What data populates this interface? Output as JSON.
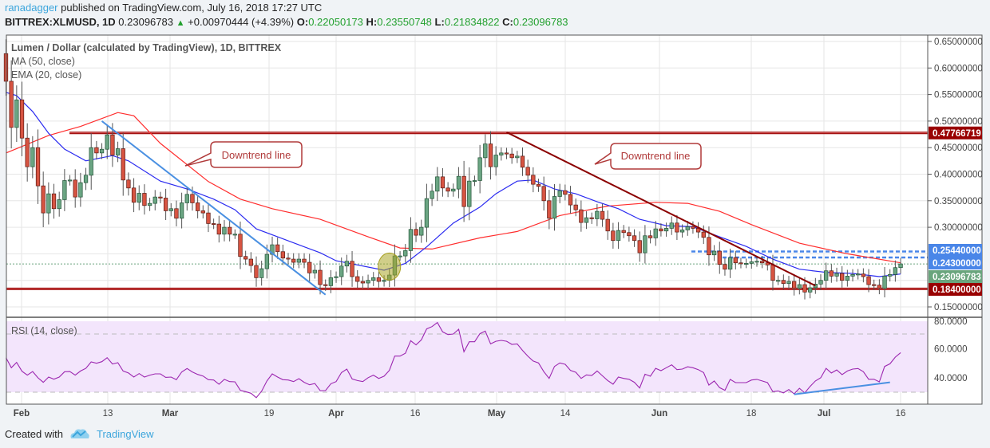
{
  "header": {
    "author": "ranadagger",
    "published_text": "published on TradingView.com, July 16, 2018 17:27 UTC",
    "symbol": "BITTREX:XLMUSD, 1D",
    "last": "0.23096783",
    "change": "+0.00970444 (+4.39%)",
    "o_label": "O:",
    "o": "0.22050173",
    "h_label": "H:",
    "h": "0.23550748",
    "l_label": "L:",
    "l": "0.21834822",
    "c_label": "C:",
    "c": "0.23096783",
    "up_icon": "triangle-up-icon"
  },
  "legend": {
    "title": "Lumen / Dollar (calculated by TradingView), 1D, BITTREX",
    "ma": "MA (50, close)",
    "ema": "EMA (20, close)",
    "rsi": "RSI (14, close)"
  },
  "annotations": {
    "callout_1": "Downtrend line",
    "callout_2": "Downtrend line"
  },
  "footer": {
    "created_with": "Created with",
    "brand": "TradingView",
    "logo_icon": "tradingview-cloud-icon"
  },
  "colors": {
    "up": "#6ba583",
    "down": "#d75442",
    "ma50": "#ff2d2d",
    "ema20": "#2a2af0",
    "rsi": "#9c27b0",
    "level": "#990000",
    "blue_level": "#4a86e8",
    "last_price": "#6aa57d",
    "trendline_blue": "#4a90e2",
    "trendline_red": "#8b0000"
  },
  "chart_data": [
    {
      "type": "candlestick",
      "title": "Lumen / Dollar (calculated by TradingView), 1D, BITTREX",
      "x_range": [
        "2018-01-29",
        "2018-07-16"
      ],
      "x_tick_labels": [
        "Feb",
        "13",
        "Mar",
        "19",
        "Apr",
        "16",
        "May",
        "14",
        "Jun",
        "18",
        "Jul",
        "16"
      ],
      "y_tick_labels": [
        "0.65000000",
        "0.60000000",
        "0.55000000",
        "0.50000000",
        "0.45000000",
        "0.40000000",
        "0.35000000",
        "0.30000000",
        "0.15000000"
      ],
      "ylim": [
        0.13,
        0.66
      ],
      "grid": true,
      "first_open": 0.627,
      "close": [
        0.575,
        0.488,
        0.54,
        0.468,
        0.414,
        0.45,
        0.378,
        0.327,
        0.363,
        0.335,
        0.352,
        0.388,
        0.389,
        0.357,
        0.384,
        0.398,
        0.45,
        0.44,
        0.447,
        0.474,
        0.436,
        0.448,
        0.389,
        0.374,
        0.347,
        0.364,
        0.341,
        0.345,
        0.357,
        0.355,
        0.331,
        0.335,
        0.317,
        0.346,
        0.362,
        0.346,
        0.331,
        0.327,
        0.307,
        0.306,
        0.287,
        0.3,
        0.287,
        0.287,
        0.245,
        0.24,
        0.228,
        0.205,
        0.222,
        0.249,
        0.267,
        0.254,
        0.242,
        0.24,
        0.234,
        0.24,
        0.234,
        0.214,
        0.219,
        0.192,
        0.19,
        0.205,
        0.207,
        0.227,
        0.236,
        0.207,
        0.198,
        0.195,
        0.2,
        0.205,
        0.198,
        0.2,
        0.21,
        0.246,
        0.246,
        0.256,
        0.296,
        0.285,
        0.3,
        0.354,
        0.368,
        0.395,
        0.374,
        0.368,
        0.372,
        0.396,
        0.339,
        0.387,
        0.388,
        0.431,
        0.457,
        0.414,
        0.436,
        0.44,
        0.438,
        0.431,
        0.434,
        0.413,
        0.398,
        0.381,
        0.377,
        0.35,
        0.317,
        0.358,
        0.369,
        0.362,
        0.342,
        0.333,
        0.309,
        0.318,
        0.316,
        0.33,
        0.315,
        0.293,
        0.275,
        0.294,
        0.29,
        0.284,
        0.275,
        0.252,
        0.284,
        0.28,
        0.297,
        0.293,
        0.298,
        0.308,
        0.291,
        0.295,
        0.301,
        0.298,
        0.291,
        0.281,
        0.248,
        0.255,
        0.23,
        0.221,
        0.243,
        0.233,
        0.232,
        0.232,
        0.235,
        0.236,
        0.233,
        0.229,
        0.2,
        0.2,
        0.194,
        0.198,
        0.185,
        0.192,
        0.178,
        0.186,
        0.193,
        0.2,
        0.218,
        0.208,
        0.213,
        0.2,
        0.208,
        0.211,
        0.212,
        0.207,
        0.192,
        0.191,
        0.185,
        0.208,
        0.211,
        0.224,
        0.23096783
      ],
      "ma50": [
        [
          "2018-01-29",
          0.44
        ],
        [
          "2018-02-06",
          0.473
        ],
        [
          "2018-02-12",
          0.49
        ],
        [
          "2018-02-19",
          0.516
        ],
        [
          "2018-02-22",
          0.51
        ],
        [
          "2018-02-27",
          0.458
        ],
        [
          "2018-03-08",
          0.386
        ],
        [
          "2018-03-14",
          0.353
        ],
        [
          "2018-03-20",
          0.335
        ],
        [
          "2018-03-29",
          0.315
        ],
        [
          "2018-04-07",
          0.282
        ],
        [
          "2018-04-13",
          0.261
        ],
        [
          "2018-04-19",
          0.259
        ],
        [
          "2018-04-28",
          0.28
        ],
        [
          "2018-05-05",
          0.292
        ],
        [
          "2018-05-13",
          0.322
        ],
        [
          "2018-05-22",
          0.34
        ],
        [
          "2018-05-31",
          0.347
        ],
        [
          "2018-06-06",
          0.345
        ],
        [
          "2018-06-12",
          0.33
        ],
        [
          "2018-06-18",
          0.305
        ],
        [
          "2018-06-27",
          0.27
        ],
        [
          "2018-07-06",
          0.25
        ],
        [
          "2018-07-16",
          0.233
        ]
      ],
      "ema20": [
        [
          "2018-01-29",
          0.554
        ],
        [
          "2018-01-31",
          0.548
        ],
        [
          "2018-02-03",
          0.518
        ],
        [
          "2018-02-06",
          0.477
        ],
        [
          "2018-02-09",
          0.447
        ],
        [
          "2018-02-13",
          0.425
        ],
        [
          "2018-02-18",
          0.435
        ],
        [
          "2018-02-21",
          0.425
        ],
        [
          "2018-02-27",
          0.387
        ],
        [
          "2018-03-04",
          0.372
        ],
        [
          "2018-03-09",
          0.353
        ],
        [
          "2018-03-13",
          0.333
        ],
        [
          "2018-03-17",
          0.297
        ],
        [
          "2018-03-21",
          0.282
        ],
        [
          "2018-03-29",
          0.252
        ],
        [
          "2018-04-01",
          0.237
        ],
        [
          "2018-04-10",
          0.219
        ],
        [
          "2018-04-14",
          0.232
        ],
        [
          "2018-04-18",
          0.263
        ],
        [
          "2018-04-23",
          0.308
        ],
        [
          "2018-04-28",
          0.338
        ],
        [
          "2018-05-01",
          0.363
        ],
        [
          "2018-05-05",
          0.387
        ],
        [
          "2018-05-08",
          0.389
        ],
        [
          "2018-05-12",
          0.372
        ],
        [
          "2018-05-16",
          0.363
        ],
        [
          "2018-05-20",
          0.348
        ],
        [
          "2018-05-24",
          0.335
        ],
        [
          "2018-05-28",
          0.315
        ],
        [
          "2018-06-02",
          0.303
        ],
        [
          "2018-06-07",
          0.301
        ],
        [
          "2018-06-12",
          0.282
        ],
        [
          "2018-06-17",
          0.264
        ],
        [
          "2018-06-22",
          0.24
        ],
        [
          "2018-06-27",
          0.221
        ],
        [
          "2018-07-02",
          0.215
        ],
        [
          "2018-07-07",
          0.213
        ],
        [
          "2018-07-12",
          0.207
        ],
        [
          "2018-07-16",
          0.212
        ]
      ],
      "levels": [
        {
          "value": 0.47766719,
          "label": "0.47766719",
          "style": "solid",
          "color": "#990000"
        },
        {
          "value": 0.2544,
          "label": "0.25440000",
          "style": "dashed",
          "color": "#4a86e8"
        },
        {
          "value": 0.243,
          "label": "0.24300000",
          "style": "dashed",
          "color": "#4a86e8"
        },
        {
          "value": 0.23096783,
          "label": "0.23096783",
          "style": "dotted",
          "color": "#6aa57d"
        },
        {
          "value": 0.184,
          "label": "0.18400000",
          "style": "solid",
          "color": "#990000"
        }
      ],
      "trendlines": [
        {
          "from": [
            "2018-02-16",
            0.5
          ],
          "to": [
            "2018-03-30",
            0.173
          ],
          "color": "#4a90e2"
        },
        {
          "from": [
            "2018-05-03",
            0.479
          ],
          "to": [
            "2018-06-30",
            0.19
          ],
          "color": "#8b0000"
        }
      ],
      "highlight": {
        "date": "2018-04-11",
        "value": 0.226
      }
    },
    {
      "type": "line",
      "title": "RSI (14, close)",
      "y_tick_labels": [
        "80.0000",
        "60.0000",
        "40.0000"
      ],
      "ylim": [
        27,
        80
      ],
      "band": [
        30,
        70
      ],
      "values": [
        53.7,
        46.8,
        50.5,
        44.4,
        41.7,
        44.2,
        39.9,
        36.8,
        40.4,
        39,
        40.4,
        44.1,
        44.2,
        41.7,
        44.6,
        46.4,
        50.8,
        49.9,
        51,
        53.7,
        49.4,
        50.3,
        44.6,
        43.2,
        40.4,
        42.8,
        40.4,
        41.7,
        42.6,
        42.6,
        40.2,
        40.4,
        38.6,
        43.9,
        46.3,
        43.9,
        42.2,
        41.1,
        38.6,
        38.4,
        35.5,
        38.8,
        37.3,
        37.1,
        31.3,
        30.4,
        29.3,
        26.3,
        30.7,
        37.7,
        42.6,
        40.4,
        38.6,
        38.4,
        37.3,
        39.3,
        36.8,
        35.1,
        36,
        31.1,
        31.1,
        35.8,
        37.3,
        43.5,
        45.9,
        39.1,
        38,
        37.3,
        40,
        41.7,
        39.5,
        41,
        45,
        54.8,
        54.8,
        56.8,
        65.4,
        62.5,
        66,
        73.5,
        75.1,
        77.9,
        71.5,
        69.6,
        70,
        73.3,
        57.8,
        64.7,
        64.7,
        70.2,
        72,
        63.2,
        65,
        65.6,
        65,
        62.9,
        63.2,
        58.7,
        54.7,
        51.4,
        50.1,
        44.1,
        39.5,
        47.7,
        50.1,
        49.2,
        45,
        43.7,
        39.5,
        41.9,
        41.5,
        44.6,
        41.3,
        38,
        35.5,
        40.4,
        39.5,
        38.9,
        36.8,
        32.9,
        42.4,
        41,
        46.4,
        44.8,
        46.8,
        48.8,
        45.5,
        45.9,
        47.5,
        46.8,
        45.5,
        43.5,
        34.9,
        37.7,
        33.1,
        31.3,
        38.8,
        36.6,
        36.6,
        36.6,
        38.4,
        38.8,
        37.7,
        36.6,
        30.4,
        30.9,
        29.5,
        31.8,
        28.9,
        32.7,
        29.5,
        34,
        37.7,
        39.9,
        46.4,
        43.2,
        45.3,
        42.1,
        44.6,
        45.9,
        46.3,
        44.1,
        38.9,
        38.9,
        37.1,
        47.7,
        49.5,
        54.1,
        57.2
      ],
      "trendline": {
        "from": [
          "2018-06-26",
          28.5
        ],
        "to": [
          "2018-07-14",
          36.8
        ],
        "color": "#4a90e2"
      }
    }
  ]
}
